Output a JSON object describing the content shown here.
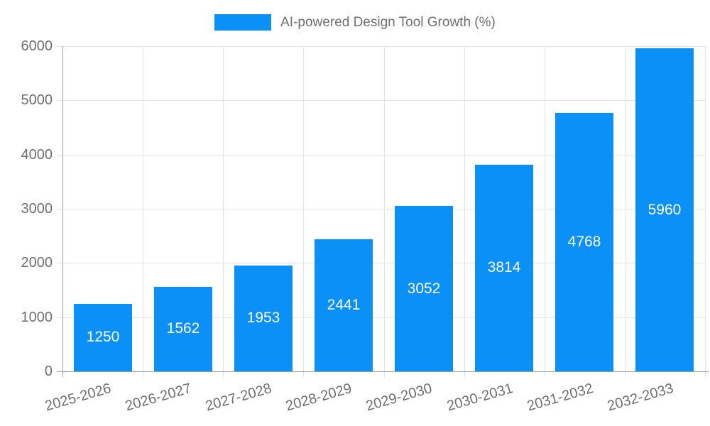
{
  "chart_data": {
    "type": "bar",
    "title": "",
    "legend": {
      "label": "AI-powered Design Tool Growth (%)",
      "position": "top"
    },
    "categories": [
      "2025-2026",
      "2026-2027",
      "2027-2028",
      "2028-2029",
      "2029-2030",
      "2030-2031",
      "2031-2032",
      "2032-2033"
    ],
    "series": [
      {
        "name": "AI-powered Design Tool Growth (%)",
        "values": [
          1250,
          1562,
          1953,
          2441,
          3052,
          3814,
          4768,
          5960
        ]
      }
    ],
    "value_labels": [
      "1250",
      "1562",
      "1953",
      "2441",
      "3052",
      "3814",
      "4768",
      "5960"
    ],
    "xlabel": "",
    "ylabel": "",
    "ylim": [
      0,
      6000
    ],
    "y_ticks": [
      0,
      1000,
      2000,
      3000,
      4000,
      5000,
      6000
    ],
    "y_tick_labels": [
      "0",
      "1000",
      "2000",
      "3000",
      "4000",
      "5000",
      "6000"
    ],
    "grid": true,
    "colors": {
      "bar": "#0b90f8",
      "grid": "#e3e3e3",
      "axis": "#9e9e9e",
      "tick_text": "#6e6e6e",
      "value_label": "#ffffff",
      "background": "#ffffff"
    }
  }
}
